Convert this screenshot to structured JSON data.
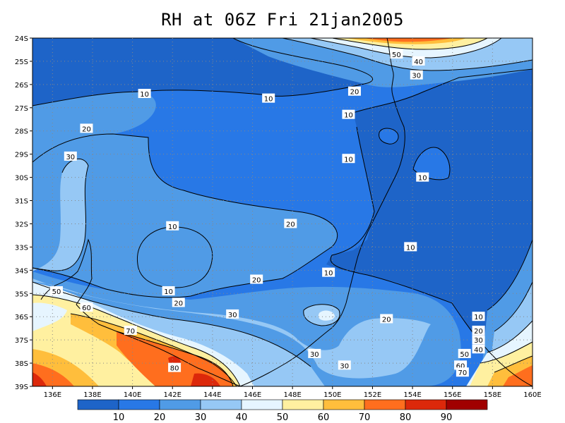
{
  "title": "RH at 06Z Fri 21jan2005",
  "map": {
    "lon_labels": [
      "136E",
      "138E",
      "140E",
      "142E",
      "144E",
      "146E",
      "148E",
      "150E",
      "152E",
      "154E",
      "156E",
      "158E",
      "160E"
    ],
    "lat_labels": [
      "24S",
      "25S",
      "26S",
      "27S",
      "28S",
      "29S",
      "30S",
      "31S",
      "32S",
      "33S",
      "34S",
      "35S",
      "36S",
      "37S",
      "38S",
      "39S"
    ],
    "contour_labels": [
      {
        "text": "10",
        "lon": 140.6,
        "lat": -26.4
      },
      {
        "text": "10",
        "lon": 146.8,
        "lat": -26.6
      },
      {
        "text": "10",
        "lon": 150.8,
        "lat": -27.3
      },
      {
        "text": "10",
        "lon": 150.8,
        "lat": -29.2
      },
      {
        "text": "10",
        "lon": 154.5,
        "lat": -30.0
      },
      {
        "text": "10",
        "lon": 142.0,
        "lat": -32.1
      },
      {
        "text": "10",
        "lon": 141.8,
        "lat": -34.9
      },
      {
        "text": "10",
        "lon": 149.8,
        "lat": -34.1
      },
      {
        "text": "10",
        "lon": 153.9,
        "lat": -33.0
      },
      {
        "text": "10",
        "lon": 157.3,
        "lat": -36.0
      },
      {
        "text": "20",
        "lon": 151.1,
        "lat": -26.3
      },
      {
        "text": "20",
        "lon": 137.7,
        "lat": -27.9
      },
      {
        "text": "20",
        "lon": 147.9,
        "lat": -32.0
      },
      {
        "text": "20",
        "lon": 146.2,
        "lat": -34.4
      },
      {
        "text": "20",
        "lon": 142.3,
        "lat": -35.4
      },
      {
        "text": "20",
        "lon": 152.7,
        "lat": -36.1
      },
      {
        "text": "20",
        "lon": 157.3,
        "lat": -36.6
      },
      {
        "text": "30",
        "lon": 136.9,
        "lat": -29.1
      },
      {
        "text": "30",
        "lon": 145.0,
        "lat": -35.9
      },
      {
        "text": "30",
        "lon": 149.1,
        "lat": -37.6
      },
      {
        "text": "30",
        "lon": 150.6,
        "lat": -38.1
      },
      {
        "text": "30",
        "lon": 157.3,
        "lat": -37.0
      },
      {
        "text": "30",
        "lon": 154.2,
        "lat": -25.6
      },
      {
        "text": "40",
        "lon": 154.3,
        "lat": -25.0
      },
      {
        "text": "40",
        "lon": 157.3,
        "lat": -37.4
      },
      {
        "text": "50",
        "lon": 153.2,
        "lat": -24.7
      },
      {
        "text": "50",
        "lon": 136.2,
        "lat": -34.9
      },
      {
        "text": "50",
        "lon": 156.6,
        "lat": -37.6
      },
      {
        "text": "60",
        "lon": 137.7,
        "lat": -35.6
      },
      {
        "text": "60",
        "lon": 156.4,
        "lat": -38.1
      },
      {
        "text": "70",
        "lon": 139.9,
        "lat": -36.6
      },
      {
        "text": "70",
        "lon": 156.5,
        "lat": -38.4
      },
      {
        "text": "80",
        "lon": 142.1,
        "lat": -38.2
      }
    ]
  },
  "colorbar": {
    "labels": [
      "10",
      "20",
      "30",
      "40",
      "50",
      "60",
      "70",
      "80",
      "90"
    ],
    "colors": [
      "#1e64c8",
      "#2878e6",
      "#509be6",
      "#96c8f5",
      "#e6f5ff",
      "#fff0a0",
      "#ffbe3c",
      "#ff6e1e",
      "#dc280a",
      "#a00000"
    ]
  }
}
